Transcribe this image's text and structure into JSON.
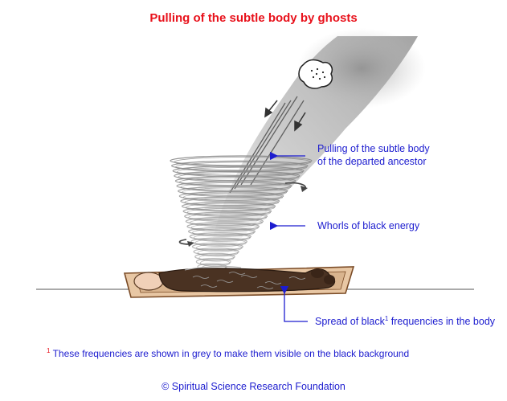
{
  "title": "Pulling of the subtle body by ghosts",
  "labels": {
    "pulling_line1": "Pulling of the subtle body",
    "pulling_line2": "of the departed ancestor",
    "whorls": "Whorls of black energy",
    "spread_pre": "Spread of black",
    "spread_sup": "1",
    "spread_post": " frequencies in the body"
  },
  "footnote": {
    "marker": "1",
    "text": " These frequencies are shown in grey to make them visible on the black background"
  },
  "copyright": "© Spiritual Science Research Foundation",
  "colors": {
    "title": "#e8111b",
    "label": "#1c1ccf",
    "arrow": "#1c1ccf",
    "energy": "#808080",
    "coffin": "#e8c7a4",
    "body": "#4a3222"
  }
}
